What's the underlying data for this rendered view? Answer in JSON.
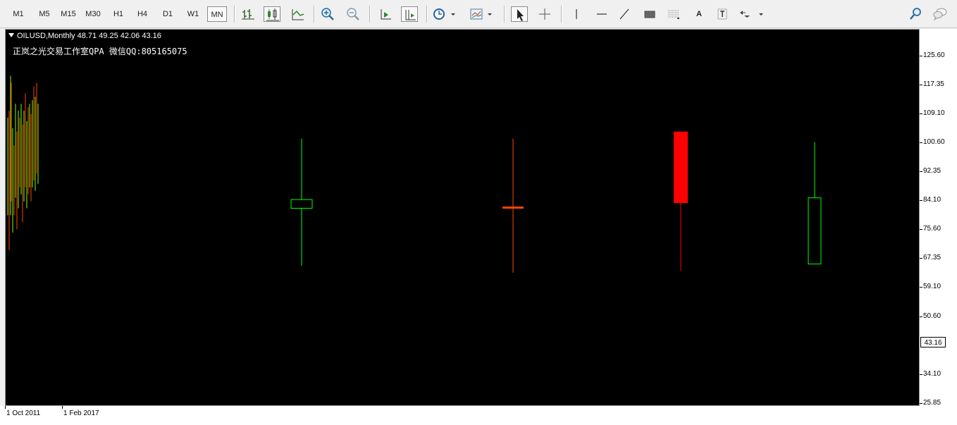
{
  "toolbar": {
    "timeframes": [
      "M1",
      "M5",
      "M15",
      "M30",
      "H1",
      "H4",
      "D1",
      "W1",
      "MN"
    ],
    "active_timeframe": "MN",
    "text_tool_label": "A"
  },
  "chart": {
    "symbol_line": "OILUSD,Monthly  48.71 49.25 42.06 43.16",
    "watermark": "正岚之光交易工作室QPA 微信QQ:805165075",
    "colors": {
      "background": "#000000",
      "bull": "#00ff00",
      "bear": "#ff0000",
      "doji": "#ff4500"
    }
  },
  "price_axis": {
    "labels": [
      "125.60",
      "117.35",
      "109.10",
      "100.60",
      "92.35",
      "84.10",
      "75.60",
      "67.35",
      "59.10",
      "50.60",
      "34.10",
      "25.85"
    ],
    "current_price": "43.16"
  },
  "time_axis": {
    "labels": [
      "1 Oct 2011",
      "1 Feb 2017"
    ]
  },
  "chart_data": {
    "type": "candlestick",
    "series": [
      {
        "open": 82.0,
        "high": 102.0,
        "low": 65.5,
        "close": 84.5
      },
      {
        "open": 82.5,
        "high": 102.0,
        "low": 63.5,
        "close": 82.0
      },
      {
        "open": 104.0,
        "high": 104.0,
        "low": 64.0,
        "close": 83.5
      },
      {
        "open": 66.0,
        "high": 101.0,
        "low": 66.0,
        "close": 85.0
      }
    ],
    "ylim": [
      25.85,
      129
    ]
  }
}
